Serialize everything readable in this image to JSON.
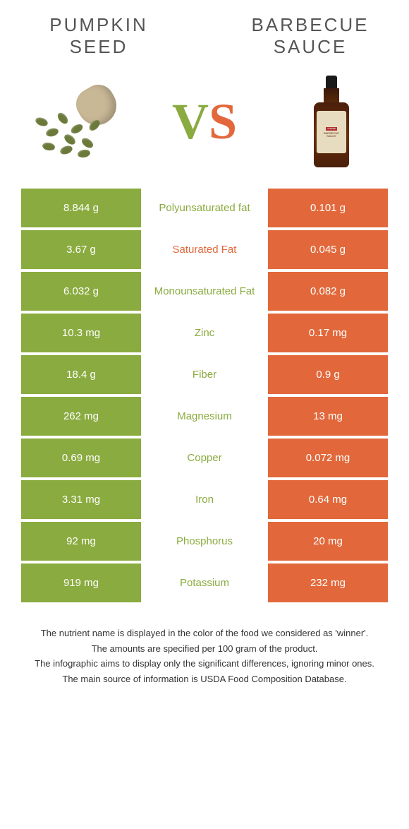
{
  "left": {
    "title": "PUMPKIN SEED"
  },
  "right": {
    "title": "BARBECUE SAUCE"
  },
  "vs": {
    "v": "V",
    "s": "S"
  },
  "colors": {
    "left": "#8aab3f",
    "right": "#e2683b",
    "text": "#333333"
  },
  "rows": [
    {
      "left": "8.844 g",
      "label": "Polyunsaturated fat",
      "right": "0.101 g",
      "winner": "left"
    },
    {
      "left": "3.67 g",
      "label": "Saturated Fat",
      "right": "0.045 g",
      "winner": "right"
    },
    {
      "left": "6.032 g",
      "label": "Monounsaturated Fat",
      "right": "0.082 g",
      "winner": "left"
    },
    {
      "left": "10.3 mg",
      "label": "Zinc",
      "right": "0.17 mg",
      "winner": "left"
    },
    {
      "left": "18.4 g",
      "label": "Fiber",
      "right": "0.9 g",
      "winner": "left"
    },
    {
      "left": "262 mg",
      "label": "Magnesium",
      "right": "13 mg",
      "winner": "left"
    },
    {
      "left": "0.69 mg",
      "label": "Copper",
      "right": "0.072 mg",
      "winner": "left"
    },
    {
      "left": "3.31 mg",
      "label": "Iron",
      "right": "0.64 mg",
      "winner": "left"
    },
    {
      "left": "92 mg",
      "label": "Phosphorus",
      "right": "20 mg",
      "winner": "left"
    },
    {
      "left": "919 mg",
      "label": "Potassium",
      "right": "232 mg",
      "winner": "left"
    }
  ],
  "footer": {
    "l1": "The nutrient name is displayed in the color of the food we considered as 'winner'.",
    "l2": "The amounts are specified per 100 gram of the product.",
    "l3": "The infographic aims to display only the significant differences, ignoring minor ones.",
    "l4": "The main source of information is USDA Food Composition Database."
  }
}
